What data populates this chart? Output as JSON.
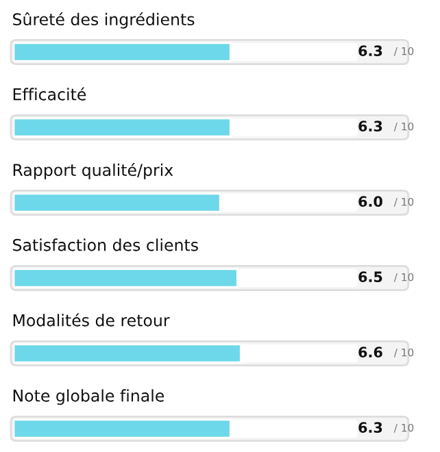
{
  "chart_data": {
    "type": "bar",
    "orientation": "horizontal",
    "categories": [
      "Sûreté des ingrédients",
      "Efficacité",
      "Rapport qualité/prix",
      "Satisfaction des clients",
      "Modalités de retour",
      "Note globale finale"
    ],
    "values": [
      6.3,
      6.3,
      6.0,
      6.5,
      6.6,
      6.3
    ],
    "value_labels": [
      "6.3",
      "6.3",
      "6.0",
      "6.5",
      "6.6",
      "6.3"
    ],
    "annotations": [
      "/ 10",
      "/ 10",
      "/ 10",
      "/ 10",
      "/ 10",
      "/ 10"
    ],
    "color": "#6dd8ea",
    "xlim": [
      0,
      10
    ]
  }
}
